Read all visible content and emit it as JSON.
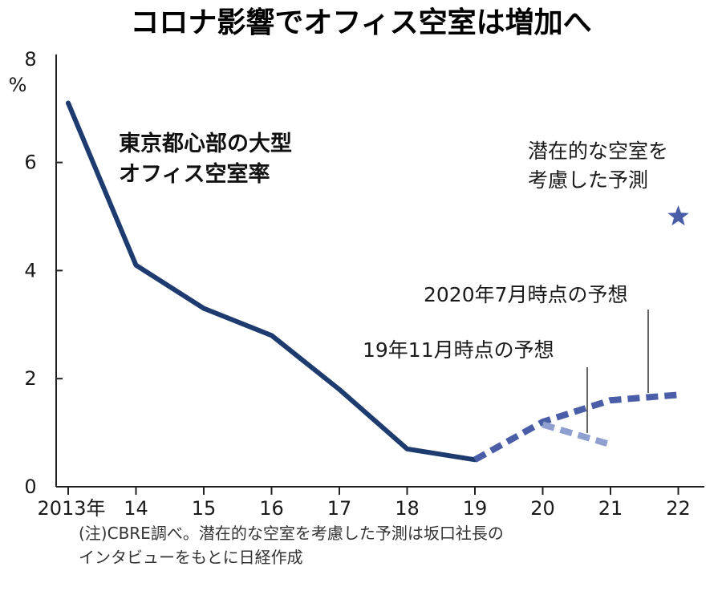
{
  "chart_data": {
    "type": "line",
    "title": "コロナ影響でオフィス空室は増加へ",
    "ylabel_lines": [
      "8",
      "%"
    ],
    "series_label_lines": [
      "東京都心部の大型",
      "オフィス空室率"
    ],
    "ylim": [
      0,
      8
    ],
    "yticks": [
      0,
      2,
      4,
      6
    ],
    "categories": [
      "2013年",
      "14",
      "15",
      "16",
      "17",
      "18",
      "19",
      "20",
      "21",
      "22"
    ],
    "x": [
      2013,
      2014,
      2015,
      2016,
      2017,
      2018,
      2019,
      2020,
      2021,
      2022
    ],
    "series": [
      {
        "key": "actual",
        "x": [
          2013,
          2014,
          2015,
          2016,
          2017,
          2018,
          2019
        ],
        "values": [
          7.1,
          4.1,
          3.3,
          2.8,
          1.8,
          0.7,
          0.5
        ],
        "color": "#1d3b6e",
        "style": "solid"
      },
      {
        "key": "forecast_2020_07",
        "name": "2020年7月時点の予想",
        "x": [
          2019,
          2020,
          2021,
          2022
        ],
        "values": [
          0.5,
          1.2,
          1.6,
          1.7
        ],
        "color": "#4a5ea8",
        "style": "dashed"
      },
      {
        "key": "forecast_2019_11",
        "name": "19年11月時点の予想",
        "x": [
          2020,
          2020.95
        ],
        "values": [
          1.15,
          0.8
        ],
        "color": "#8e9fd0",
        "style": "dashed"
      }
    ],
    "point_annotation": {
      "label_lines": [
        "潜在的な空室を",
        "考慮した予測"
      ],
      "x": 2022,
      "value": 5.0,
      "marker": "star",
      "color": "#4a5ea8"
    },
    "grid": false,
    "note_lines": [
      "(注)CBRE調べ。潜在的な空室を考慮した予測は坂口社長の",
      "インタビューをもとに日経作成"
    ]
  }
}
